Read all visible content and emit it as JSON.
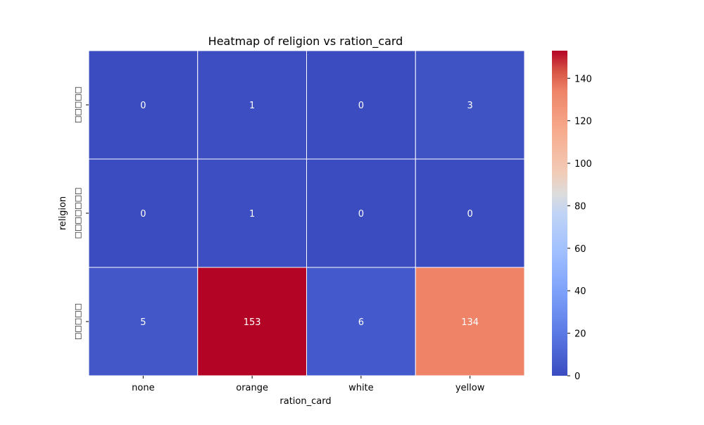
{
  "chart_data": {
    "type": "heatmap",
    "title": "Heatmap of religion vs ration_card",
    "xlabel": "ration_card",
    "ylabel": "religion",
    "x_categories": [
      "none",
      "orange",
      "white",
      "yellow"
    ],
    "y_categories": [
      "□□□□□",
      "□□□□□□□",
      "□□□□□"
    ],
    "values": [
      [
        0,
        1,
        0,
        3
      ],
      [
        0,
        1,
        0,
        0
      ],
      [
        5,
        153,
        6,
        134
      ]
    ],
    "colormap": "coolwarm",
    "vmin": 0,
    "vmax": 153,
    "colorbar": {
      "ticks": [
        0,
        20,
        40,
        60,
        80,
        100,
        120,
        140
      ]
    },
    "annotations": true,
    "grid": false
  }
}
